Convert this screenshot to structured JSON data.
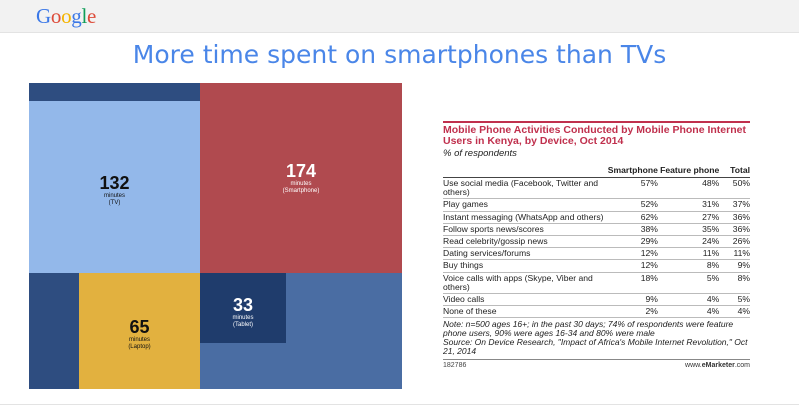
{
  "header": {
    "logo_letters": [
      {
        "ch": "G",
        "color": "#3b78e7"
      },
      {
        "ch": "o",
        "color": "#dd4b39"
      },
      {
        "ch": "o",
        "color": "#f4b400"
      },
      {
        "ch": "g",
        "color": "#3b78e7"
      },
      {
        "ch": "l",
        "color": "#0f9d58"
      },
      {
        "ch": "e",
        "color": "#dd4b39"
      }
    ],
    "title": "More time spent on smartphones than TVs"
  },
  "treemap": {
    "tiles": [
      {
        "value": "132",
        "unit": "minutes",
        "label": "(TV)",
        "color": "#93b8ea"
      },
      {
        "value": "174",
        "unit": "minutes",
        "label": "(Smartphone)",
        "color": "#b04a4f"
      },
      {
        "value": "65",
        "unit": "minutes",
        "label": "(Laptop)",
        "color": "#e2b13f"
      },
      {
        "value": "33",
        "unit": "minutes",
        "label": "(Tablet)",
        "color": "#1f3c6c"
      }
    ],
    "colors": {
      "pane": "#4a6da3",
      "dark": "#2e4d80",
      "navy": "#1f3c6c",
      "light_band": "#2a4a7d"
    }
  },
  "table": {
    "title": "Mobile Phone Activities Conducted by Mobile Phone Internet Users in Kenya, by Device, Oct 2014",
    "subtitle": "% of respondents",
    "columns": [
      "",
      "Smartphone",
      "Feature phone",
      "Total"
    ],
    "rows": [
      {
        "activity": "Use social media (Facebook, Twitter and others)",
        "smartphone": "57%",
        "feature": "48%",
        "total": "50%"
      },
      {
        "activity": "Play games",
        "smartphone": "52%",
        "feature": "31%",
        "total": "37%"
      },
      {
        "activity": "Instant messaging (WhatsApp and others)",
        "smartphone": "62%",
        "feature": "27%",
        "total": "36%"
      },
      {
        "activity": "Follow sports news/scores",
        "smartphone": "38%",
        "feature": "35%",
        "total": "36%"
      },
      {
        "activity": "Read celebrity/gossip news",
        "smartphone": "29%",
        "feature": "24%",
        "total": "26%"
      },
      {
        "activity": "Dating services/forums",
        "smartphone": "12%",
        "feature": "11%",
        "total": "11%"
      },
      {
        "activity": "Buy things",
        "smartphone": "12%",
        "feature": "8%",
        "total": "9%"
      },
      {
        "activity": "Voice calls with apps (Skype, Viber and others)",
        "smartphone": "18%",
        "feature": "5%",
        "total": "8%"
      },
      {
        "activity": "Video calls",
        "smartphone": "9%",
        "feature": "4%",
        "total": "5%"
      },
      {
        "activity": "None of these",
        "smartphone": "2%",
        "feature": "4%",
        "total": "4%"
      }
    ],
    "note": "Note: n=500 ages 16+; in the past 30 days; 74% of respondents were feature phone users, 90% were ages 16-34 and 80% were male",
    "source": "Source: On Device Research, \"Impact of Africa's Mobile Internet Revolution,\" Oct 21, 2014",
    "id": "182786",
    "brand_prefix": "www.",
    "brand_bold": "eMarketer",
    "brand_suffix": ".com",
    "accent": "#c0304d"
  }
}
